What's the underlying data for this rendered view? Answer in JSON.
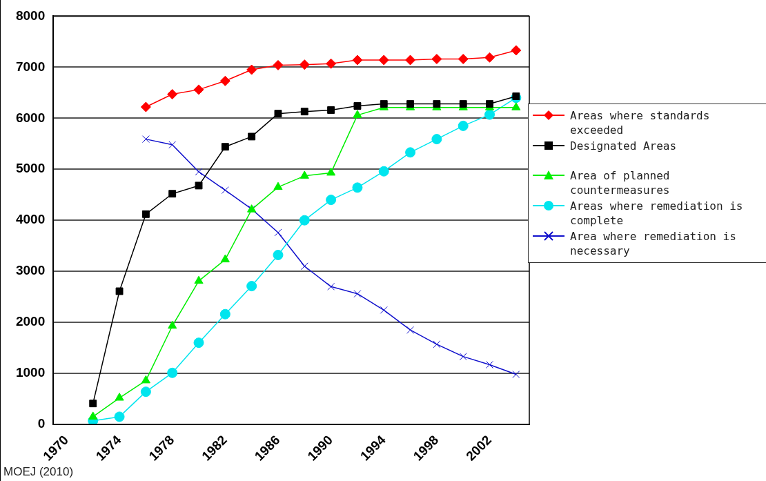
{
  "chart_data": {
    "type": "line",
    "categories": [
      "1970",
      null,
      "1974",
      null,
      "1978",
      null,
      "1982",
      null,
      "1986",
      null,
      "1990",
      null,
      "1994",
      null,
      "1998",
      null,
      "2002",
      null
    ],
    "series": [
      {
        "name": "Areas where standards exceeded",
        "color": "#ff0000",
        "marker": "diamond",
        "values": [
          null,
          null,
          null,
          6220,
          6470,
          6560,
          6730,
          6950,
          7040,
          7050,
          7070,
          7140,
          7140,
          7140,
          7160,
          7160,
          7190,
          7330
        ]
      },
      {
        "name": "Designated Areas",
        "color": "#000000",
        "marker": "square",
        "values": [
          null,
          410,
          2610,
          4120,
          4520,
          4680,
          5440,
          5640,
          6090,
          6130,
          6160,
          6240,
          6280,
          6280,
          6280,
          6280,
          6280,
          6430
        ]
      },
      {
        "name": "Area of planned countermeasures",
        "color": "#00ee00",
        "marker": "triangle",
        "values": [
          null,
          150,
          520,
          860,
          1930,
          2810,
          3230,
          4210,
          4650,
          4870,
          4930,
          6060,
          6210,
          6210,
          6210,
          6210,
          6210,
          6210
        ]
      },
      {
        "name": "Areas where remediation is complete",
        "color": "#00e5ee",
        "marker": "circle",
        "values": [
          null,
          70,
          150,
          640,
          1010,
          1600,
          2160,
          2710,
          3320,
          4000,
          4400,
          4640,
          4960,
          5330,
          5590,
          5850,
          6070,
          6400
        ]
      },
      {
        "name": "Area where remediation is necessary",
        "color": "#1010cc",
        "marker": "cross",
        "values": [
          null,
          null,
          null,
          5590,
          5480,
          4950,
          4590,
          4220,
          3760,
          3100,
          2700,
          2560,
          2240,
          1850,
          1570,
          1330,
          1170,
          980
        ]
      }
    ],
    "ylim": [
      0,
      8000
    ],
    "yticks": [
      0,
      1000,
      2000,
      3000,
      4000,
      5000,
      6000,
      7000,
      8000
    ],
    "grid": "y",
    "legend": "right",
    "line_style": "solid",
    "annotations": [
      "MOEJ (2010)"
    ]
  }
}
